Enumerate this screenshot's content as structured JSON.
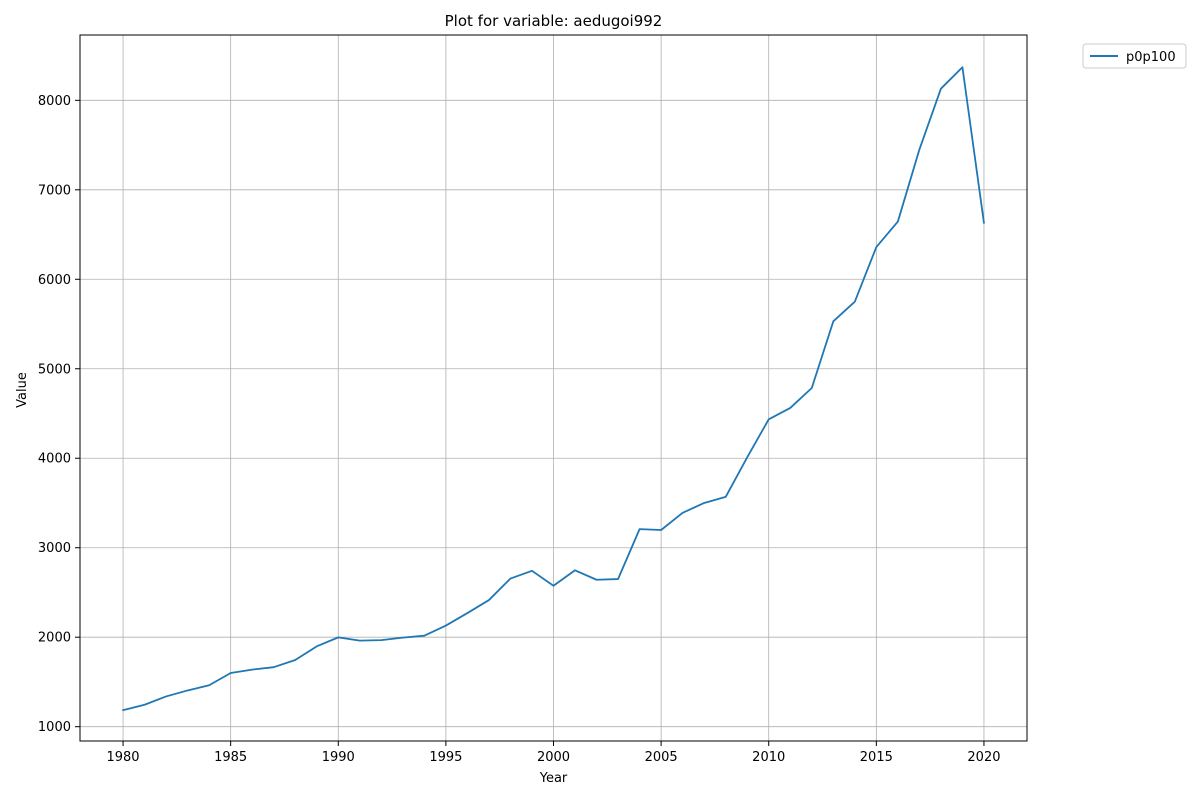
{
  "chart_data": {
    "type": "line",
    "title": "Plot for variable: aedugoi992",
    "xlabel": "Year",
    "ylabel": "Value",
    "xlim": [
      1978,
      2022
    ],
    "ylim": [
      840,
      8730
    ],
    "xticks": [
      1980,
      1985,
      1990,
      1995,
      2000,
      2005,
      2010,
      2015,
      2020
    ],
    "yticks": [
      1000,
      2000,
      3000,
      4000,
      5000,
      6000,
      7000,
      8000
    ],
    "grid": true,
    "legend_position": "outside-top-right",
    "series": [
      {
        "name": "p0p100",
        "color": "#1f77b4",
        "x": [
          1980,
          1981,
          1982,
          1983,
          1984,
          1985,
          1986,
          1987,
          1988,
          1989,
          1990,
          1991,
          1992,
          1993,
          1994,
          1995,
          1996,
          1997,
          1998,
          1999,
          2000,
          2001,
          2002,
          2003,
          2004,
          2005,
          2006,
          2007,
          2008,
          2009,
          2010,
          2011,
          2012,
          2013,
          2014,
          2015,
          2016,
          2017,
          2018,
          2019,
          2020
        ],
        "y": [
          1185,
          1245,
          1338,
          1405,
          1463,
          1600,
          1638,
          1665,
          1745,
          1898,
          1998,
          1962,
          1967,
          1995,
          2017,
          2130,
          2270,
          2415,
          2655,
          2742,
          2575,
          2748,
          2642,
          2650,
          3208,
          3198,
          3390,
          3500,
          3568,
          4010,
          4435,
          4562,
          4785,
          5530,
          5750,
          6360,
          6645,
          7450,
          8130,
          8370,
          6630
        ]
      }
    ]
  }
}
